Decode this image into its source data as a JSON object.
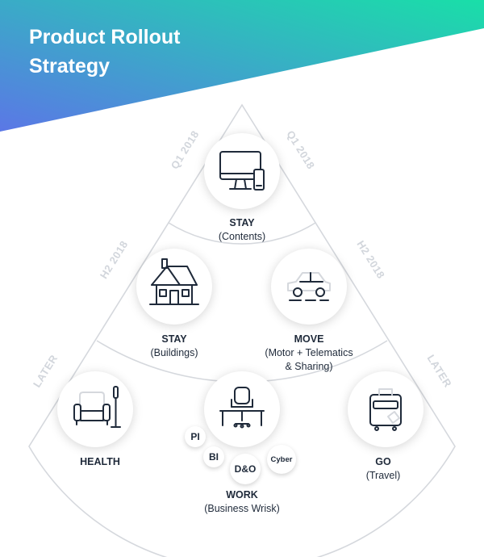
{
  "title": {
    "line1": "Product Rollout",
    "line2": "Strategy"
  },
  "colors": {
    "banner_start": "#5b77e6",
    "banner_end": "#19dfa8",
    "outline": "#d5d8dd",
    "phase_text": "#d2d6dc",
    "text": "#1f2a3a"
  },
  "phases": {
    "q1_left": "Q1 2018",
    "q1_right": "Q1 2018",
    "h2_left": "H2 2018",
    "h2_right": "H2 2018",
    "later_left": "LATER",
    "later_right": "LATER"
  },
  "products": {
    "stay_contents": {
      "name": "STAY",
      "detail": "(Contents)",
      "icon": "computer-icon"
    },
    "stay_buildings": {
      "name": "STAY",
      "detail": "(Buildings)",
      "icon": "house-icon"
    },
    "move": {
      "name": "MOVE",
      "detail_line1": "(Motor + Telematics",
      "detail_line2": "& Sharing)",
      "icon": "car-icon"
    },
    "health": {
      "name": "HEALTH",
      "icon": "armchair-icon"
    },
    "work": {
      "name": "WORK",
      "detail": "(Business Wrisk)",
      "icon": "office-chair-icon"
    },
    "go": {
      "name": "GO",
      "detail": "(Travel)",
      "icon": "suitcase-icon"
    }
  },
  "work_lines": {
    "pi": "PI",
    "bi": "BI",
    "do": "D&O",
    "cyber": "Cyber"
  }
}
